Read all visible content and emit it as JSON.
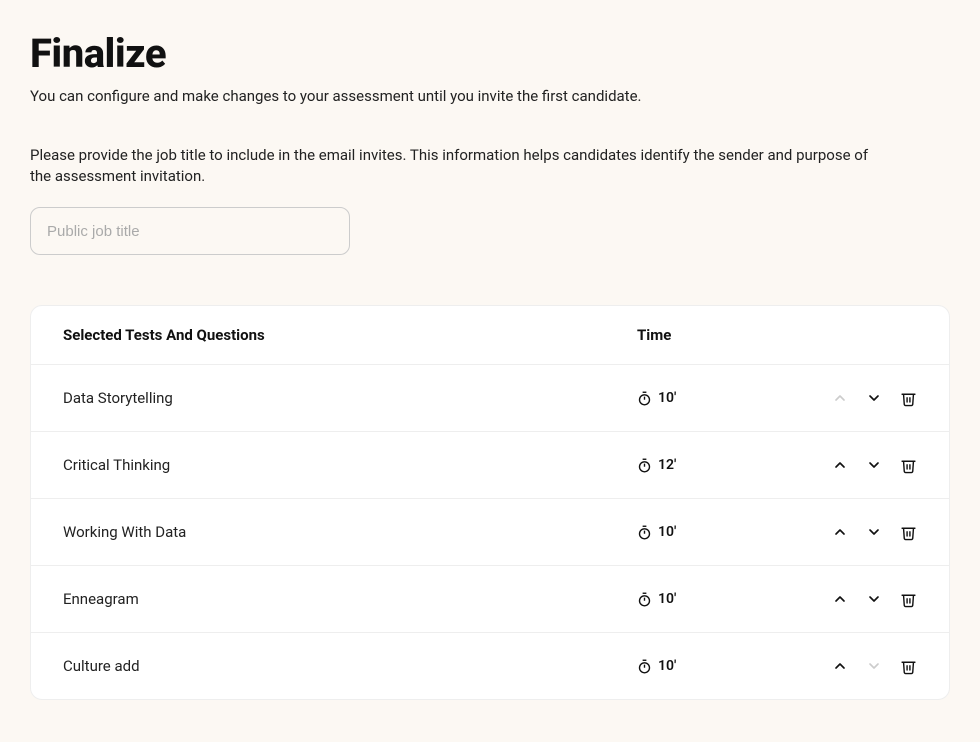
{
  "header": {
    "title": "Finalize",
    "subtitle": "You can configure and make changes to your assessment until you invite the first candidate.",
    "description": "Please provide the job title to include in the email invites. This information helps candidates identify the sender and purpose of the assessment invitation."
  },
  "job_title_input": {
    "placeholder": "Public job title",
    "value": ""
  },
  "table": {
    "header_name": "Selected Tests And Questions",
    "header_time": "Time",
    "rows": [
      {
        "name": "Data Storytelling",
        "time": "10'",
        "up_enabled": false,
        "down_enabled": true
      },
      {
        "name": "Critical Thinking",
        "time": "12'",
        "up_enabled": true,
        "down_enabled": true
      },
      {
        "name": "Working With Data",
        "time": "10'",
        "up_enabled": true,
        "down_enabled": true
      },
      {
        "name": "Enneagram",
        "time": "10'",
        "up_enabled": true,
        "down_enabled": true
      },
      {
        "name": "Culture add",
        "time": "10'",
        "up_enabled": true,
        "down_enabled": false
      }
    ]
  },
  "colors": {
    "background": "#fcf8f3",
    "text": "#111111",
    "border": "#eeeeee",
    "disabled": "#cccccc"
  }
}
